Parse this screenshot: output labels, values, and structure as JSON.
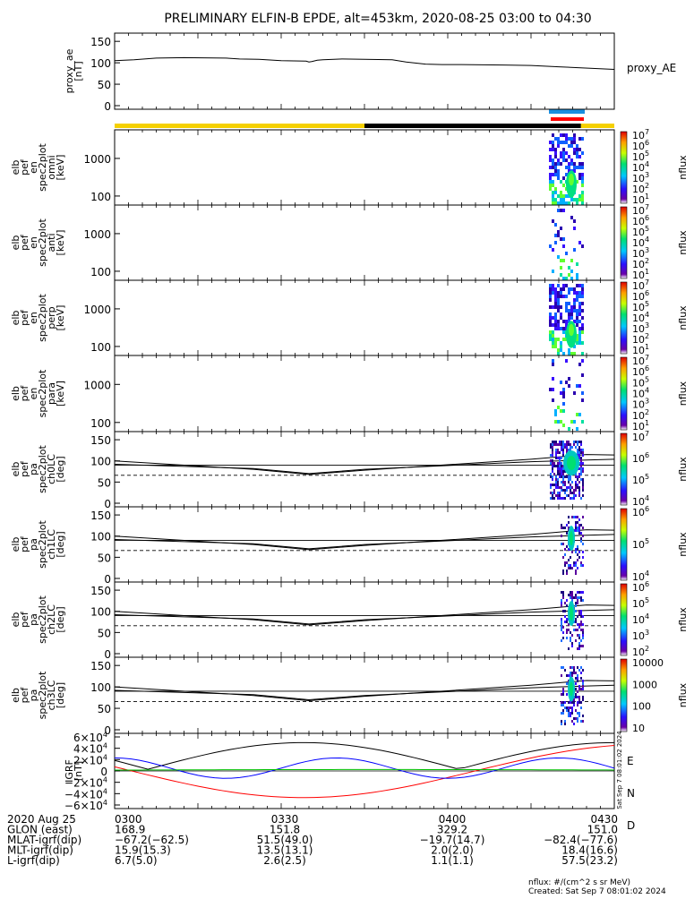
{
  "chart_data": {
    "type": "spectrogram",
    "title": "PRELIMINARY ELFIN-B EPDE, alt=453km, 2020-08-25 03:00 to 04:30",
    "x_ticks": [
      "0300",
      "0330",
      "0400",
      "0430"
    ],
    "panels": [
      {
        "id": "proxy_ae",
        "kind": "line",
        "ylabel": [
          "proxy_ae",
          "[nT]"
        ],
        "yticks": [
          "150",
          "100",
          "50",
          "0"
        ],
        "ytick_values": [
          150,
          100,
          50,
          0
        ],
        "ylim": [
          0,
          150
        ],
        "series_label": "proxy_AE",
        "x_minutes": [
          0,
          7,
          15,
          25,
          40,
          45,
          52,
          60,
          69,
          70,
          71,
          73,
          75,
          82,
          90,
          100,
          105,
          112,
          118,
          125,
          140,
          150,
          160,
          180
        ],
        "values": [
          95,
          97,
          101,
          102,
          101,
          99,
          98,
          95,
          94,
          92,
          93,
          96,
          97,
          99,
          98,
          97,
          92,
          87,
          86,
          86,
          85,
          84,
          81,
          75
        ]
      },
      {
        "id": "en_omni",
        "kind": "spectrogram",
        "ylabel": [
          "elb",
          "pef",
          "en",
          "spec2plot",
          "omni",
          "[keV]"
        ],
        "yticks": [
          "1000",
          "100"
        ],
        "cbar_ticks": [
          "10",
          "10",
          "10",
          "10",
          "10",
          "10",
          "10"
        ],
        "cbar_exps": [
          "7",
          "6",
          "5",
          "4",
          "3",
          "2",
          "1"
        ],
        "zlabel": "nflux"
      },
      {
        "id": "en_anti",
        "kind": "spectrogram",
        "ylabel": [
          "elb",
          "pef",
          "en",
          "spec2plot",
          "anti",
          "[keV]"
        ],
        "yticks": [
          "1000",
          "100"
        ],
        "cbar_ticks": [
          "10",
          "10",
          "10",
          "10",
          "10",
          "10",
          "10"
        ],
        "cbar_exps": [
          "7",
          "6",
          "5",
          "4",
          "3",
          "2",
          "1"
        ],
        "zlabel": "nflux"
      },
      {
        "id": "en_perp",
        "kind": "spectrogram",
        "ylabel": [
          "elb",
          "pef",
          "en",
          "spec2plot",
          "perp",
          "[keV]"
        ],
        "yticks": [
          "1000",
          "100"
        ],
        "cbar_ticks": [
          "10",
          "10",
          "10",
          "10",
          "10",
          "10",
          "10"
        ],
        "cbar_exps": [
          "7",
          "6",
          "5",
          "4",
          "3",
          "2",
          "1"
        ],
        "zlabel": "nflux"
      },
      {
        "id": "en_para",
        "kind": "spectrogram",
        "ylabel": [
          "elb",
          "pef",
          "en",
          "spec2plot",
          "para",
          "[keV]"
        ],
        "yticks": [
          "1000",
          "100"
        ],
        "cbar_ticks": [
          "10",
          "10",
          "10",
          "10",
          "10",
          "10",
          "10"
        ],
        "cbar_exps": [
          "7",
          "6",
          "5",
          "4",
          "3",
          "2",
          "1"
        ],
        "zlabel": "nflux"
      },
      {
        "id": "pa_ch0",
        "kind": "spectrogram",
        "ylabel": [
          "elb",
          "pef",
          "pa",
          "spec2plot",
          "ch0LC",
          "[deg]"
        ],
        "yticks": [
          "150",
          "100",
          "50",
          "0"
        ],
        "cbar_ticks": [
          "10",
          "10",
          "10",
          "10"
        ],
        "cbar_exps": [
          "7",
          "6",
          "5",
          "4"
        ],
        "zlabel": "nflux"
      },
      {
        "id": "pa_ch1",
        "kind": "spectrogram",
        "ylabel": [
          "elb",
          "pef",
          "pa",
          "spec2plot",
          "ch1LC",
          "[deg]"
        ],
        "yticks": [
          "150",
          "100",
          "50",
          "0"
        ],
        "cbar_ticks": [
          "10",
          "10",
          "10"
        ],
        "cbar_exps": [
          "6",
          "5",
          "4"
        ],
        "zlabel": "nflux"
      },
      {
        "id": "pa_ch2",
        "kind": "spectrogram",
        "ylabel": [
          "elb",
          "pef",
          "pa",
          "spec2plot",
          "ch2LC",
          "[deg]"
        ],
        "yticks": [
          "150",
          "100",
          "50",
          "0"
        ],
        "cbar_ticks": [
          "10",
          "10",
          "10",
          "10",
          "10"
        ],
        "cbar_exps": [
          "6",
          "5",
          "4",
          "3",
          "2"
        ],
        "zlabel": "nflux"
      },
      {
        "id": "pa_ch3",
        "kind": "spectrogram",
        "ylabel": [
          "elb",
          "pef",
          "pa",
          "spec2plot",
          "ch3LC",
          "[deg]"
        ],
        "yticks": [
          "150",
          "100",
          "50",
          "0"
        ],
        "cbar_ticks": [
          "10000",
          "1000",
          "100",
          "10"
        ],
        "cbar_exps": [
          "",
          "",
          "",
          ""
        ],
        "zlabel": "nflux"
      },
      {
        "id": "igrf",
        "kind": "line",
        "ylabel": [
          "IGRF",
          "[nT]"
        ],
        "yticks": [
          "6×10",
          "4×10",
          "2×10",
          "0",
          "−2×10",
          "−4×10",
          "−6×10"
        ],
        "ytick_exps": [
          "4",
          "4",
          "4",
          "",
          "4",
          "4",
          "4"
        ],
        "ylim": [
          -60000,
          60000
        ],
        "legend": [
          "E",
          "N",
          "D"
        ],
        "legend_colors": [
          "#00c000",
          "#0000ff",
          "#ff0000"
        ]
      }
    ]
  },
  "ephemeris": {
    "rows": [
      {
        "label": "2020 Aug 25",
        "values": [
          "0300",
          "0330",
          "0400",
          "0430"
        ]
      },
      {
        "label": "GLON (east)",
        "values": [
          "168.9",
          "151.8",
          "329.2",
          "151.0"
        ]
      },
      {
        "label": "MLAT-igrf(dip)",
        "values": [
          "−67.2(−62.5)",
          "51.5(49.0)",
          "−19.7(14.7)",
          "−82.4(−77.6)"
        ]
      },
      {
        "label": "MLT-igrf(dip)",
        "values": [
          "15.9(15.3)",
          "13.5(13.1)",
          "2.0(2.0)",
          "18.4(16.6)"
        ]
      },
      {
        "label": "L-igrf(dip)",
        "values": [
          "6.7(5.0)",
          "2.6(2.5)",
          "1.1(1.1)",
          "57.5(23.2)"
        ]
      }
    ]
  },
  "footer": {
    "units": "nflux: #/(cm^2 s sr MeV)",
    "created": "Created: Sat Sep  7 08:01:02 2024",
    "side_stamp": "Sat Sep  7 08:01:02 2024"
  },
  "colors": {
    "day_bar": "#f5d000",
    "night_bar": "#000000",
    "science_bar_blue": "#1a8fe0",
    "science_bar_red": "#ff0000"
  }
}
